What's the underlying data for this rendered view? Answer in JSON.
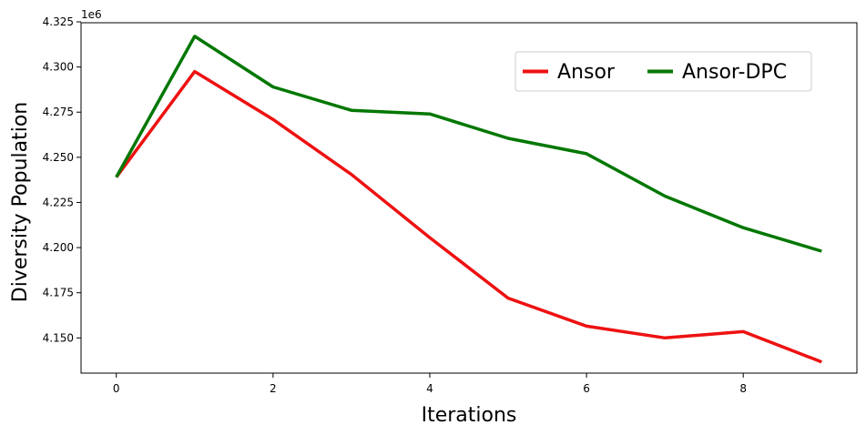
{
  "chart_data": {
    "type": "line",
    "xlabel": "Iterations",
    "ylabel": "Diversity Population",
    "y_offset_label": "1e6",
    "x": [
      0,
      1,
      2,
      3,
      4,
      5,
      6,
      7,
      8,
      9
    ],
    "xlim": [
      -0.45,
      9.45
    ],
    "ylim": [
      4.1305,
      4.3245
    ],
    "x_ticks": [
      0,
      2,
      4,
      6,
      8
    ],
    "y_ticks": [
      4.15,
      4.175,
      4.2,
      4.225,
      4.25,
      4.275,
      4.3,
      4.325
    ],
    "y_tick_labels": [
      "4.150",
      "4.175",
      "4.200",
      "4.225",
      "4.250",
      "4.275",
      "4.300",
      "4.325"
    ],
    "grid": false,
    "legend_position": "top-right",
    "series": [
      {
        "name": "Ansor",
        "color": "#ee1111",
        "values": [
          4.239,
          4.2975,
          4.271,
          4.2405,
          4.2055,
          4.172,
          4.1565,
          4.15,
          4.1535,
          4.1367
        ]
      },
      {
        "name": "Ansor-DPC",
        "color": "#007700",
        "values": [
          4.239,
          4.317,
          4.289,
          4.276,
          4.274,
          4.2605,
          4.252,
          4.2285,
          4.211,
          4.198
        ]
      }
    ]
  }
}
